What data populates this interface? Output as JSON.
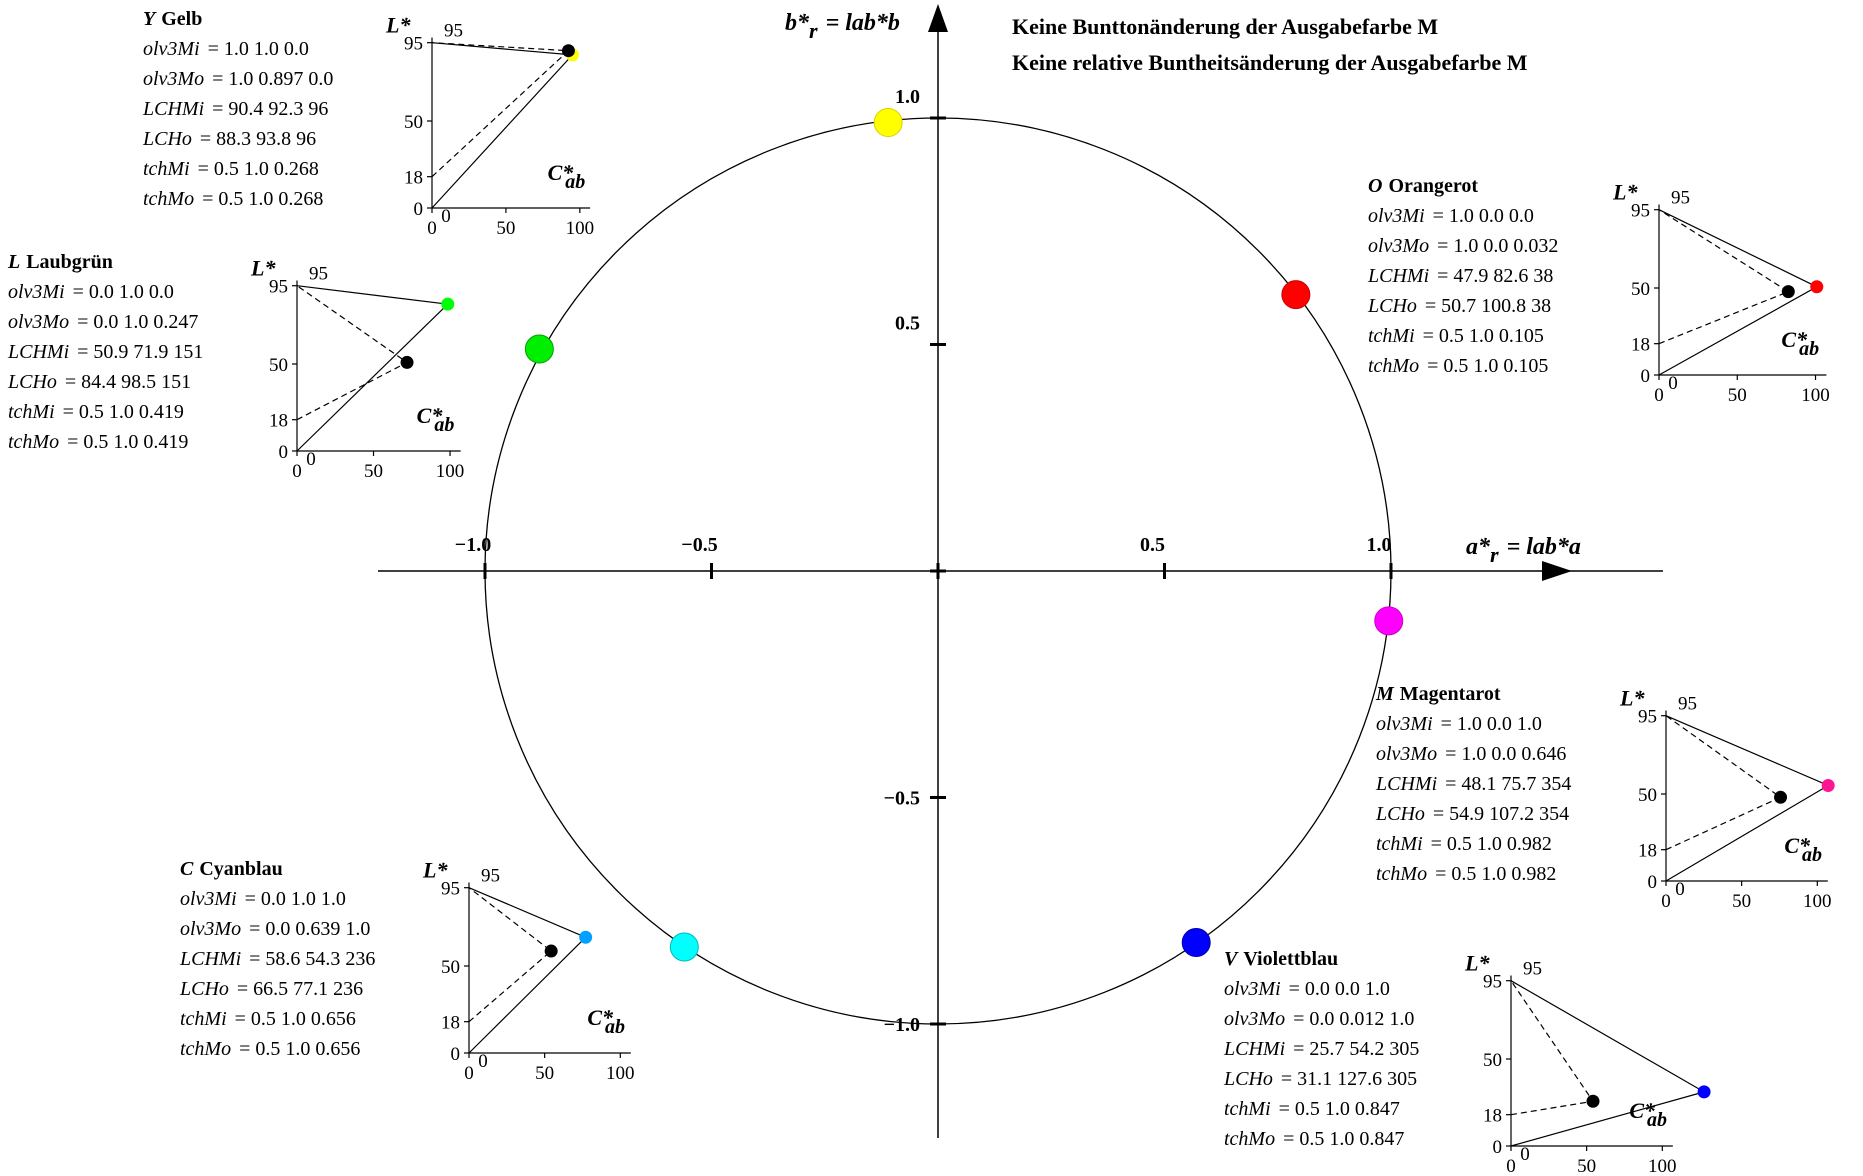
{
  "header": {
    "line1": "Keine Bunttonänderung der Ausgabefarbe M",
    "line2": "Keine relative Buntheitsänderung der Ausgabefarbe M"
  },
  "axes": {
    "x": {
      "main": "a*",
      "sub": "r",
      "rest": "= lab*a"
    },
    "y": {
      "main": "b*",
      "sub": "r",
      "rest": "= lab*b"
    },
    "x_ticks": [
      {
        "value": -1.0,
        "label": "−1.0"
      },
      {
        "value": -0.5,
        "label": "−0.5"
      },
      {
        "value": 0.5,
        "label": "0.5"
      },
      {
        "value": 1.0,
        "label": "1.0"
      }
    ],
    "y_ticks": [
      {
        "value": 1.0,
        "label": "1.0"
      },
      {
        "value": 0.5,
        "label": "0.5"
      },
      {
        "value": -0.5,
        "label": "−0.5"
      },
      {
        "value": -1.0,
        "label": "−1.0"
      }
    ]
  },
  "circle_points": [
    {
      "name": "Y",
      "a": -0.11,
      "b": 0.99,
      "color": "#ffff00",
      "stroke": "#e0d000"
    },
    {
      "name": "O",
      "a": 0.79,
      "b": 0.61,
      "color": "#ff0000",
      "stroke": "#cc0000"
    },
    {
      "name": "L",
      "a": -0.88,
      "b": 0.49,
      "color": "#00ee00",
      "stroke": "#00a000"
    },
    {
      "name": "M",
      "a": 0.995,
      "b": -0.11,
      "color": "#ff00ff",
      "stroke": "#cc00cc"
    },
    {
      "name": "C",
      "a": -0.56,
      "b": -0.83,
      "color": "#00ffff",
      "stroke": "#00bbbb"
    },
    {
      "name": "V",
      "a": 0.57,
      "b": -0.82,
      "color": "#0000ff",
      "stroke": "#0000aa"
    }
  ],
  "panels": [
    {
      "id": "Y",
      "letter": "Y",
      "name": "Gelb",
      "rows": [
        {
          "label": "olv3Mi",
          "value": "= 1.0  1.0  0.0"
        },
        {
          "label": "olv3Mo",
          "value": "= 1.0  0.897  0.0"
        },
        {
          "label": "LCHMi",
          "value": "= 90.4  92.3  96"
        },
        {
          "label": "LCHo",
          "value": "= 88.3  93.8  96"
        },
        {
          "label": "tchMi",
          "value": "= 0.5  1.0  0.268"
        },
        {
          "label": "tchMo",
          "value": "= 0.5  1.0  0.268"
        }
      ],
      "L_in": 90.4,
      "C_in": 92.3,
      "L_out": 88.3,
      "C_out": 93.8,
      "out_color": "#ffff00",
      "cusp_color": "#ffff00",
      "cusp_L": 88,
      "cusp_C": 95
    },
    {
      "id": "O",
      "letter": "O",
      "name": "Orangerot",
      "rows": [
        {
          "label": "olv3Mi",
          "value": "= 1.0  0.0  0.0"
        },
        {
          "label": "olv3Mo",
          "value": "= 1.0  0.0  0.032"
        },
        {
          "label": "LCHMi",
          "value": "= 47.9  82.6  38"
        },
        {
          "label": "LCHo",
          "value": "= 50.7  100.8  38"
        },
        {
          "label": "tchMi",
          "value": "= 0.5  1.0  0.105"
        },
        {
          "label": "tchMo",
          "value": "= 0.5  1.0  0.105"
        }
      ],
      "L_in": 47.9,
      "C_in": 82.6,
      "L_out": 50.7,
      "C_out": 100.8,
      "out_color": "#ff0000",
      "cusp_color": "#ff0000",
      "cusp_L": 50.7,
      "cusp_C": 100.8
    },
    {
      "id": "L",
      "letter": "L",
      "name": "Laubgrün",
      "rows": [
        {
          "label": "olv3Mi",
          "value": "= 0.0  1.0  0.0"
        },
        {
          "label": "olv3Mo",
          "value": "= 0.0  1.0  0.247"
        },
        {
          "label": "LCHMi",
          "value": "= 50.9  71.9  151"
        },
        {
          "label": "LCHo",
          "value": "= 84.4  98.5  151"
        },
        {
          "label": "tchMi",
          "value": "= 0.5  1.0  0.419"
        },
        {
          "label": "tchMo",
          "value": "= 0.5  1.0  0.419"
        }
      ],
      "L_in": 50.9,
      "C_in": 71.9,
      "L_out": 84.4,
      "C_out": 98.5,
      "out_color": "#00ff00",
      "cusp_color": "#00ff00",
      "cusp_L": 84.4,
      "cusp_C": 98.5
    },
    {
      "id": "M",
      "letter": "M",
      "name": "Magentarot",
      "rows": [
        {
          "label": "olv3Mi",
          "value": "= 1.0  0.0  1.0"
        },
        {
          "label": "olv3Mo",
          "value": "= 1.0  0.0  0.646"
        },
        {
          "label": "LCHMi",
          "value": "= 48.1  75.7  354"
        },
        {
          "label": "LCHo",
          "value": "= 54.9  107.2  354"
        },
        {
          "label": "tchMi",
          "value": "= 0.5  1.0  0.982"
        },
        {
          "label": "tchMo",
          "value": "= 0.5  1.0  0.982"
        }
      ],
      "L_in": 48.1,
      "C_in": 75.7,
      "L_out": 54.9,
      "C_out": 107.2,
      "out_color": "#ff00ff",
      "cusp_color": "#ff1493",
      "cusp_L": 54.9,
      "cusp_C": 107.2
    },
    {
      "id": "C",
      "letter": "C",
      "name": "Cyanblau",
      "rows": [
        {
          "label": "olv3Mi",
          "value": "= 0.0  1.0  1.0"
        },
        {
          "label": "olv3Mo",
          "value": "= 0.0  0.639  1.0"
        },
        {
          "label": "LCHMi",
          "value": "= 58.6  54.3  236"
        },
        {
          "label": "LCHo",
          "value": "= 66.5  77.1  236"
        },
        {
          "label": "tchMi",
          "value": "= 0.5  1.0  0.656"
        },
        {
          "label": "tchMo",
          "value": "= 0.5  1.0  0.656"
        }
      ],
      "L_in": 58.6,
      "C_in": 54.3,
      "L_out": 66.5,
      "C_out": 77.1,
      "out_color": "#00a0ff",
      "cusp_color": "#00a0ff",
      "cusp_L": 66.5,
      "cusp_C": 77.1
    },
    {
      "id": "V",
      "letter": "V",
      "name": "Violettblau",
      "rows": [
        {
          "label": "olv3Mi",
          "value": "= 0.0  0.0  1.0"
        },
        {
          "label": "olv3Mo",
          "value": "= 0.0  0.012  1.0"
        },
        {
          "label": "LCHMi",
          "value": "= 25.7  54.2  305"
        },
        {
          "label": "LCHo",
          "value": "= 31.1  127.6  305"
        },
        {
          "label": "tchMi",
          "value": "= 0.5  1.0  0.847"
        },
        {
          "label": "tchMo",
          "value": "= 0.5  1.0  0.847"
        }
      ],
      "L_in": 25.7,
      "C_in": 54.2,
      "L_out": 31.1,
      "C_out": 127.6,
      "out_color": "#0000ff",
      "cusp_color": "#0000ff",
      "cusp_L": 31.1,
      "cusp_C": 127.6
    }
  ],
  "mini_axes": {
    "y_title": "L*",
    "x_title_main": "C*",
    "x_title_sub": "ab",
    "top_label": "95",
    "y_ticks": [
      {
        "value": 95,
        "label": "95"
      },
      {
        "value": 50,
        "label": "50"
      },
      {
        "value": 18,
        "label": "18"
      },
      {
        "value": 0,
        "label": "0"
      }
    ],
    "x_ticks": [
      {
        "value": 0,
        "label": "0"
      },
      {
        "value": 50,
        "label": "50"
      },
      {
        "value": 100,
        "label": "100"
      }
    ]
  }
}
